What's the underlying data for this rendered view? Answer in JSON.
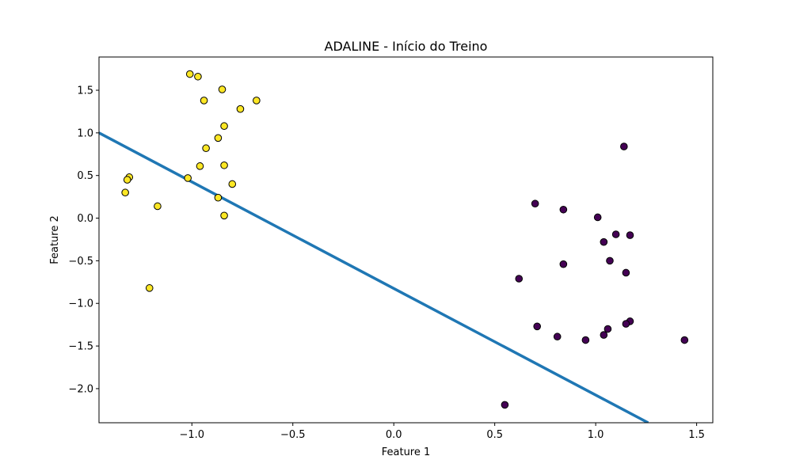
{
  "chart_data": {
    "type": "scatter",
    "title": "ADALINE - Início do Treino",
    "xlabel": "Feature 1",
    "ylabel": "Feature 2",
    "xlim": [
      -1.46,
      1.58
    ],
    "ylim": [
      -2.4,
      1.89
    ],
    "x_ticks": [
      -1.0,
      -0.5,
      0.0,
      0.5,
      1.0,
      1.5
    ],
    "x_tick_labels": [
      "−1.0",
      "−0.5",
      "0.0",
      "0.5",
      "1.0",
      "1.5"
    ],
    "y_ticks": [
      -2.0,
      -1.5,
      -1.0,
      -0.5,
      0.0,
      0.5,
      1.0,
      1.5
    ],
    "y_tick_labels": [
      "−2.0",
      "−1.5",
      "−1.0",
      "−0.5",
      "0.0",
      "0.5",
      "1.0",
      "1.5"
    ],
    "grid": false,
    "series": [
      {
        "color": "#fde725",
        "points": [
          [
            -1.01,
            1.69
          ],
          [
            -0.97,
            1.66
          ],
          [
            -0.85,
            1.51
          ],
          [
            -0.94,
            1.38
          ],
          [
            -0.68,
            1.38
          ],
          [
            -0.76,
            1.28
          ],
          [
            -0.84,
            1.08
          ],
          [
            -0.87,
            0.94
          ],
          [
            -0.93,
            0.82
          ],
          [
            -0.96,
            0.61
          ],
          [
            -0.84,
            0.62
          ],
          [
            -1.02,
            0.47
          ],
          [
            -1.31,
            0.48
          ],
          [
            -1.32,
            0.45
          ],
          [
            -0.8,
            0.4
          ],
          [
            -1.33,
            0.3
          ],
          [
            -0.87,
            0.24
          ],
          [
            -1.17,
            0.14
          ],
          [
            -0.84,
            0.03
          ],
          [
            -1.21,
            -0.82
          ]
        ]
      },
      {
        "color": "#440154",
        "points": [
          [
            1.14,
            0.84
          ],
          [
            0.7,
            0.17
          ],
          [
            0.84,
            0.1
          ],
          [
            1.01,
            0.01
          ],
          [
            1.1,
            -0.19
          ],
          [
            1.17,
            -0.2
          ],
          [
            1.04,
            -0.28
          ],
          [
            0.84,
            -0.54
          ],
          [
            1.07,
            -0.5
          ],
          [
            1.15,
            -0.64
          ],
          [
            0.62,
            -0.71
          ],
          [
            0.71,
            -1.27
          ],
          [
            1.17,
            -1.21
          ],
          [
            1.15,
            -1.24
          ],
          [
            1.06,
            -1.3
          ],
          [
            1.04,
            -1.37
          ],
          [
            0.81,
            -1.39
          ],
          [
            0.95,
            -1.43
          ],
          [
            1.44,
            -1.43
          ],
          [
            0.55,
            -2.19
          ]
        ]
      }
    ],
    "line": {
      "color": "#1f77b4",
      "points": [
        [
          -1.46,
          1.0
        ],
        [
          1.26,
          -2.4
        ]
      ]
    }
  }
}
